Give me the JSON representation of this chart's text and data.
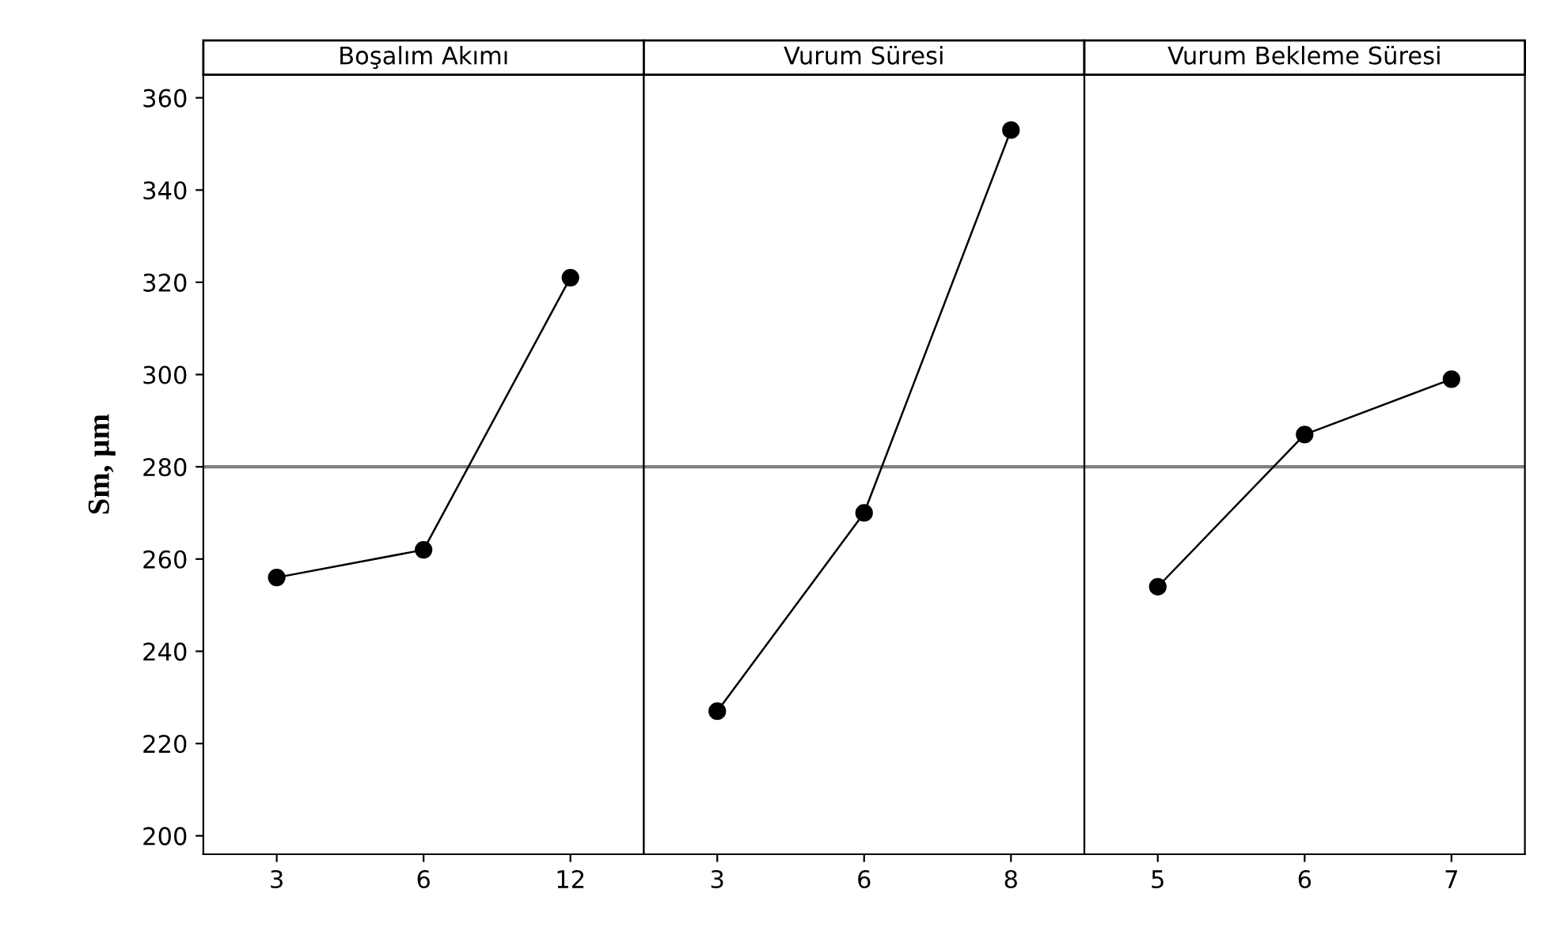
{
  "chart_data": [
    {
      "type": "line",
      "title": "Boşalım Akımı",
      "ylabel": "Sm, µm",
      "categories": [
        "3",
        "6",
        "12"
      ],
      "series": [
        {
          "color": "#000000",
          "values": [
            256,
            262,
            321
          ]
        }
      ],
      "ylim": [
        196,
        365
      ],
      "yticks": [
        200,
        220,
        240,
        260,
        280,
        300,
        320,
        340,
        360
      ],
      "ref_lines": [
        {
          "axis": "y",
          "value": 280,
          "color": "#808080"
        }
      ],
      "marker": "circle",
      "grid": false
    },
    {
      "type": "line",
      "title": "Vurum Süresi",
      "categories": [
        "3",
        "6",
        "8"
      ],
      "series": [
        {
          "color": "#000000",
          "values": [
            227,
            270,
            353
          ]
        }
      ],
      "ylim": [
        196,
        365
      ],
      "tick_labels": "x",
      "ref_lines": [
        {
          "axis": "y",
          "value": 280,
          "color": "#808080"
        }
      ],
      "marker": "circle",
      "grid": false
    },
    {
      "type": "line",
      "title": "Vurum Bekleme Süresi",
      "categories": [
        "5",
        "6",
        "7"
      ],
      "series": [
        {
          "color": "#000000",
          "values": [
            254,
            287,
            299
          ]
        }
      ],
      "ylim": [
        196,
        365
      ],
      "tick_labels": "x",
      "ref_lines": [
        {
          "axis": "y",
          "value": 280,
          "color": "#808080"
        }
      ],
      "marker": "circle",
      "grid": false
    }
  ]
}
